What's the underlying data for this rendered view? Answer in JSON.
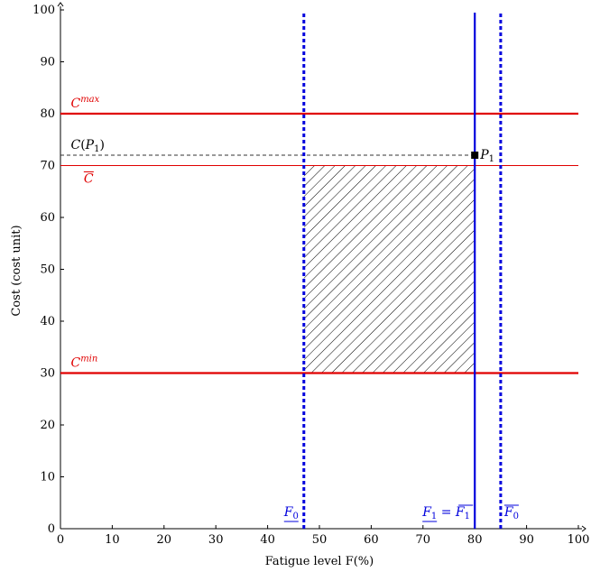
{
  "chart_data": {
    "type": "line",
    "title": "",
    "xlabel": "Fatigue level F(%)",
    "ylabel": "Cost (cost unit)",
    "xlim": [
      0,
      100
    ],
    "ylim": [
      0,
      100
    ],
    "xticks": [
      0,
      10,
      20,
      30,
      40,
      50,
      60,
      70,
      80,
      90,
      100
    ],
    "yticks": [
      0,
      10,
      20,
      30,
      40,
      50,
      60,
      70,
      80,
      90,
      100
    ],
    "grid": false,
    "colors": {
      "red": "#e00000",
      "blue": "#0000dd",
      "black": "#000000",
      "dashed": "#333333"
    },
    "horizontal_lines": [
      {
        "name": "C^max",
        "label_base": "C",
        "label_sup": "max",
        "y": 80,
        "style": "solid-thick",
        "color": "#e00000",
        "label_x": 2
      },
      {
        "name": "C-bar",
        "label_base": "C",
        "overline": true,
        "y": 70,
        "style": "solid-thin",
        "color": "#e00000",
        "label_x": 4.5
      },
      {
        "name": "C^min",
        "label_base": "C",
        "label_sup": "min",
        "y": 30,
        "style": "solid-thick",
        "color": "#e00000",
        "label_x": 2
      }
    ],
    "vertical_lines": [
      {
        "name": "F0-underline",
        "label": "F0",
        "label_base": "F",
        "label_sub": "0",
        "decor": "underline",
        "x": 47,
        "style": "dotted",
        "color": "#0000dd"
      },
      {
        "name": "F1-equals",
        "label": "F1 = F1-bar",
        "label_base": "F",
        "label_sub": "1",
        "x": 80,
        "style": "solid",
        "color": "#0000dd"
      },
      {
        "name": "F0-overline",
        "label": "F0-bar",
        "label_base": "F",
        "label_sub": "0",
        "decor": "overline",
        "x": 85,
        "style": "dotted",
        "color": "#0000dd"
      }
    ],
    "reference_line": {
      "name": "C(P1)",
      "label_base": "C(P",
      "label_sub": "1",
      "label_end": ")",
      "y": 72,
      "x_from": 0,
      "x_to": 80,
      "style": "dashed",
      "color": "#333333"
    },
    "point": {
      "name": "P1",
      "label_base": "P",
      "label_sub": "1",
      "x": 80,
      "y": 72
    },
    "shaded_region": {
      "x": [
        47,
        80
      ],
      "y": [
        30,
        70
      ],
      "pattern": "diagonal-hatch"
    }
  }
}
